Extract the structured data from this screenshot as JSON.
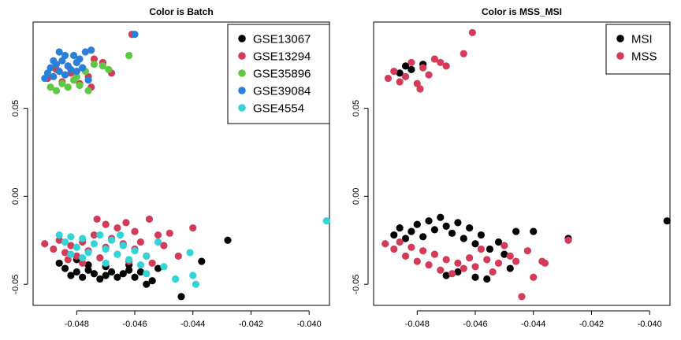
{
  "chart_data": [
    {
      "type": "scatter",
      "title": "Color is Batch",
      "xlabel": "",
      "ylabel": "",
      "xlim": [
        -0.0495,
        -0.0393
      ],
      "ylim": [
        -0.062,
        0.099
      ],
      "xticks": [
        "-0.048",
        "-0.046",
        "-0.044",
        "-0.042",
        "-0.040"
      ],
      "xtick_values": [
        -0.048,
        -0.046,
        -0.044,
        -0.042,
        -0.04
      ],
      "yticks": [
        "-0.05",
        "0.00",
        "0.05"
      ],
      "ytick_values": [
        -0.05,
        0.0,
        0.05
      ],
      "legend_position": "top-right",
      "series": [
        {
          "name": "GSE13067",
          "color": "#000000",
          "points": [
            [
              -0.0484,
              -0.041
            ],
            [
              -0.0482,
              -0.045
            ],
            [
              -0.048,
              -0.043
            ],
            [
              -0.0478,
              -0.046
            ],
            [
              -0.0476,
              -0.042
            ],
            [
              -0.0474,
              -0.044
            ],
            [
              -0.0472,
              -0.047
            ],
            [
              -0.047,
              -0.045
            ],
            [
              -0.0468,
              -0.043
            ],
            [
              -0.0466,
              -0.046
            ],
            [
              -0.0464,
              -0.044
            ],
            [
              -0.0462,
              -0.042
            ],
            [
              -0.046,
              -0.046
            ],
            [
              -0.0458,
              -0.043
            ],
            [
              -0.0456,
              -0.05
            ],
            [
              -0.0454,
              -0.048
            ],
            [
              -0.047,
              -0.04
            ],
            [
              -0.0476,
              -0.039
            ],
            [
              -0.0462,
              -0.039
            ],
            [
              -0.0444,
              -0.057
            ],
            [
              -0.0437,
              -0.037
            ],
            [
              -0.0428,
              -0.025
            ],
            [
              -0.048,
              -0.036
            ],
            [
              -0.0486,
              -0.038
            ],
            [
              -0.0452,
              -0.041
            ]
          ]
        },
        {
          "name": "GSE13294",
          "color": "#D43B59",
          "points": [
            [
              -0.0491,
              -0.027
            ],
            [
              -0.0488,
              -0.03
            ],
            [
              -0.0486,
              -0.025
            ],
            [
              -0.0484,
              -0.032
            ],
            [
              -0.0482,
              -0.028
            ],
            [
              -0.048,
              -0.034
            ],
            [
              -0.0478,
              -0.026
            ],
            [
              -0.0476,
              -0.031
            ],
            [
              -0.0474,
              -0.022
            ],
            [
              -0.0472,
              -0.035
            ],
            [
              -0.047,
              -0.029
            ],
            [
              -0.0468,
              -0.024
            ],
            [
              -0.0466,
              -0.033
            ],
            [
              -0.0464,
              -0.027
            ],
            [
              -0.0462,
              -0.037
            ],
            [
              -0.046,
              -0.03
            ],
            [
              -0.0458,
              -0.026
            ],
            [
              -0.0456,
              -0.034
            ],
            [
              -0.0473,
              -0.013
            ],
            [
              -0.047,
              -0.016
            ],
            [
              -0.0466,
              -0.018
            ],
            [
              -0.0463,
              -0.015
            ],
            [
              -0.046,
              -0.02
            ],
            [
              -0.0455,
              -0.013
            ],
            [
              -0.0452,
              -0.022
            ],
            [
              -0.045,
              -0.028
            ],
            [
              -0.0448,
              -0.021
            ],
            [
              -0.0445,
              -0.034
            ],
            [
              -0.044,
              -0.018
            ],
            [
              -0.0454,
              -0.038
            ],
            [
              -0.0478,
              -0.038
            ],
            [
              -0.0483,
              -0.036
            ],
            [
              -0.049,
              0.067
            ],
            [
              -0.0487,
              0.072
            ],
            [
              -0.0485,
              0.065
            ],
            [
              -0.0482,
              0.07
            ],
            [
              -0.048,
              0.076
            ],
            [
              -0.0478,
              0.073
            ],
            [
              -0.0476,
              0.068
            ],
            [
              -0.0474,
              0.078
            ],
            [
              -0.0471,
              0.076
            ],
            [
              -0.0468,
              0.07
            ],
            [
              -0.0475,
              0.062
            ],
            [
              -0.0479,
              0.064
            ],
            [
              -0.0483,
              0.074
            ],
            [
              -0.0461,
              0.092
            ]
          ]
        },
        {
          "name": "GSE35896",
          "color": "#5DC840",
          "points": [
            [
              -0.0489,
              0.062
            ],
            [
              -0.0487,
              0.06
            ],
            [
              -0.0485,
              0.064
            ],
            [
              -0.0483,
              0.062
            ],
            [
              -0.0481,
              0.066
            ],
            [
              -0.0479,
              0.063
            ],
            [
              -0.0477,
              0.071
            ],
            [
              -0.0474,
              0.075
            ],
            [
              -0.0471,
              0.074
            ],
            [
              -0.0469,
              0.072
            ],
            [
              -0.0476,
              0.06
            ],
            [
              -0.0462,
              0.08
            ],
            [
              -0.0484,
              0.069
            ],
            [
              -0.048,
              0.068
            ]
          ]
        },
        {
          "name": "GSE39084",
          "color": "#2A80D8",
          "points": [
            [
              -0.0491,
              0.067
            ],
            [
              -0.049,
              0.07
            ],
            [
              -0.0489,
              0.073
            ],
            [
              -0.0488,
              0.068
            ],
            [
              -0.0487,
              0.075
            ],
            [
              -0.0486,
              0.071
            ],
            [
              -0.0485,
              0.077
            ],
            [
              -0.0484,
              0.069
            ],
            [
              -0.0483,
              0.074
            ],
            [
              -0.0482,
              0.072
            ],
            [
              -0.0481,
              0.08
            ],
            [
              -0.048,
              0.076
            ],
            [
              -0.0479,
              0.078
            ],
            [
              -0.0478,
              0.073
            ],
            [
              -0.0477,
              0.082
            ],
            [
              -0.0476,
              0.066
            ],
            [
              -0.0475,
              0.083
            ],
            [
              -0.0486,
              0.082
            ],
            [
              -0.0488,
              0.077
            ],
            [
              -0.0484,
              0.08
            ],
            [
              -0.048,
              0.071
            ],
            [
              -0.046,
              0.092
            ]
          ]
        },
        {
          "name": "GSE4554",
          "color": "#33D4D8",
          "points": [
            [
              -0.0486,
              -0.022
            ],
            [
              -0.0484,
              -0.026
            ],
            [
              -0.0482,
              -0.023
            ],
            [
              -0.048,
              -0.029
            ],
            [
              -0.0478,
              -0.024
            ],
            [
              -0.0476,
              -0.032
            ],
            [
              -0.0474,
              -0.027
            ],
            [
              -0.0472,
              -0.022
            ],
            [
              -0.047,
              -0.03
            ],
            [
              -0.0468,
              -0.025
            ],
            [
              -0.0466,
              -0.033
            ],
            [
              -0.0464,
              -0.028
            ],
            [
              -0.0462,
              -0.036
            ],
            [
              -0.046,
              -0.031
            ],
            [
              -0.0458,
              -0.039
            ],
            [
              -0.0456,
              -0.034
            ],
            [
              -0.0478,
              -0.035
            ],
            [
              -0.0482,
              -0.033
            ],
            [
              -0.047,
              -0.038
            ],
            [
              -0.0465,
              -0.022
            ],
            [
              -0.0452,
              -0.026
            ],
            [
              -0.045,
              -0.04
            ],
            [
              -0.0446,
              -0.047
            ],
            [
              -0.0441,
              -0.032
            ],
            [
              -0.044,
              -0.045
            ],
            [
              -0.0439,
              -0.05
            ],
            [
              -0.0456,
              -0.044
            ],
            [
              -0.0394,
              -0.014
            ]
          ]
        }
      ]
    },
    {
      "type": "scatter",
      "title": "Color is MSS_MSI",
      "xlabel": "",
      "ylabel": "",
      "xlim": [
        -0.0495,
        -0.0393
      ],
      "ylim": [
        -0.062,
        0.099
      ],
      "xticks": [
        "-0.048",
        "-0.046",
        "-0.044",
        "-0.042",
        "-0.040"
      ],
      "xtick_values": [
        -0.048,
        -0.046,
        -0.044,
        -0.042,
        -0.04
      ],
      "yticks": [
        "-0.05",
        "0.00",
        "0.05"
      ],
      "ytick_values": [
        -0.05,
        0.0,
        0.05
      ],
      "legend_position": "top-right",
      "series": [
        {
          "name": "MSI",
          "color": "#000000",
          "points": [
            [
              -0.0488,
              -0.022
            ],
            [
              -0.0486,
              -0.018
            ],
            [
              -0.0484,
              -0.024
            ],
            [
              -0.0482,
              -0.02
            ],
            [
              -0.048,
              -0.016
            ],
            [
              -0.0478,
              -0.023
            ],
            [
              -0.0476,
              -0.014
            ],
            [
              -0.0474,
              -0.019
            ],
            [
              -0.0472,
              -0.012
            ],
            [
              -0.047,
              -0.017
            ],
            [
              -0.0468,
              -0.021
            ],
            [
              -0.0466,
              -0.015
            ],
            [
              -0.0464,
              -0.024
            ],
            [
              -0.0462,
              -0.018
            ],
            [
              -0.046,
              -0.027
            ],
            [
              -0.0458,
              -0.022
            ],
            [
              -0.0455,
              -0.03
            ],
            [
              -0.0452,
              -0.026
            ],
            [
              -0.045,
              -0.033
            ],
            [
              -0.0448,
              -0.041
            ],
            [
              -0.047,
              -0.045
            ],
            [
              -0.0466,
              -0.043
            ],
            [
              -0.046,
              -0.046
            ],
            [
              -0.0456,
              -0.047
            ],
            [
              -0.0446,
              -0.02
            ],
            [
              -0.044,
              -0.02
            ],
            [
              -0.0428,
              -0.024
            ],
            [
              -0.0394,
              -0.014
            ],
            [
              -0.0486,
              0.07
            ],
            [
              -0.0484,
              0.074
            ],
            [
              -0.0482,
              0.072
            ],
            [
              -0.0478,
              0.075
            ]
          ]
        },
        {
          "name": "MSS",
          "color": "#D43B59",
          "points": [
            [
              -0.0491,
              -0.027
            ],
            [
              -0.0488,
              -0.03
            ],
            [
              -0.0486,
              -0.026
            ],
            [
              -0.0484,
              -0.034
            ],
            [
              -0.0482,
              -0.029
            ],
            [
              -0.048,
              -0.037
            ],
            [
              -0.0478,
              -0.031
            ],
            [
              -0.0476,
              -0.039
            ],
            [
              -0.0474,
              -0.033
            ],
            [
              -0.0472,
              -0.042
            ],
            [
              -0.047,
              -0.036
            ],
            [
              -0.0468,
              -0.044
            ],
            [
              -0.0466,
              -0.038
            ],
            [
              -0.0464,
              -0.041
            ],
            [
              -0.0462,
              -0.035
            ],
            [
              -0.046,
              -0.04
            ],
            [
              -0.0458,
              -0.03
            ],
            [
              -0.0456,
              -0.036
            ],
            [
              -0.0454,
              -0.043
            ],
            [
              -0.0452,
              -0.038
            ],
            [
              -0.045,
              -0.028
            ],
            [
              -0.0448,
              -0.034
            ],
            [
              -0.0446,
              -0.037
            ],
            [
              -0.0442,
              -0.031
            ],
            [
              -0.044,
              -0.046
            ],
            [
              -0.0436,
              -0.038
            ],
            [
              -0.0444,
              -0.057
            ],
            [
              -0.0437,
              -0.037
            ],
            [
              -0.0428,
              -0.025
            ],
            [
              -0.049,
              0.067
            ],
            [
              -0.0488,
              0.071
            ],
            [
              -0.0486,
              0.065
            ],
            [
              -0.0484,
              0.068
            ],
            [
              -0.0482,
              0.076
            ],
            [
              -0.048,
              0.064
            ],
            [
              -0.0478,
              0.073
            ],
            [
              -0.0476,
              0.069
            ],
            [
              -0.0474,
              0.078
            ],
            [
              -0.0472,
              0.076
            ],
            [
              -0.047,
              0.074
            ],
            [
              -0.0464,
              0.081
            ],
            [
              -0.0479,
              0.061
            ],
            [
              -0.0461,
              0.093
            ]
          ]
        }
      ]
    }
  ]
}
